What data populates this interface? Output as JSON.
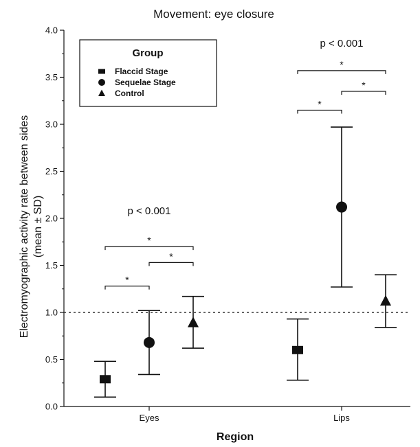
{
  "chart_data": {
    "type": "scatter",
    "title": "Movement: eye closure",
    "ylabel": "Electromyographic activity rate between sides",
    "ylabel_sub": "(mean ± SD)",
    "xlabel": "Region",
    "ylim": [
      0,
      4
    ],
    "y_ticks": [
      "0.0",
      "0.5",
      "1.0",
      "1.5",
      "2.0",
      "2.5",
      "3.0",
      "3.5",
      "4.0"
    ],
    "categories": [
      "Eyes",
      "Lips"
    ],
    "reference_line": 1.0,
    "legend": {
      "title": "Group",
      "placement": "top-left"
    },
    "series": [
      {
        "name": "Flaccid Stage",
        "marker": "square",
        "means": [
          0.29,
          0.6
        ],
        "sd_low": [
          0.1,
          0.28
        ],
        "sd_high": [
          0.48,
          0.93
        ]
      },
      {
        "name": "Sequelae Stage",
        "marker": "circle",
        "means": [
          0.68,
          2.12
        ],
        "sd_low": [
          0.34,
          1.27
        ],
        "sd_high": [
          1.02,
          2.97
        ]
      },
      {
        "name": "Control",
        "marker": "triangle",
        "means": [
          0.89,
          1.12
        ],
        "sd_low": [
          0.62,
          0.84
        ],
        "sd_high": [
          1.17,
          1.4
        ]
      }
    ],
    "annotations": [
      {
        "category": "Eyes",
        "p_value": "p < 0.001",
        "p_value_y": 2.08,
        "brackets": [
          {
            "from": "Flaccid Stage",
            "to": "Sequelae Stage",
            "y": 1.28,
            "label": "*"
          },
          {
            "from": "Sequelae Stage",
            "to": "Control",
            "y": 1.53,
            "label": "*"
          },
          {
            "from": "Flaccid Stage",
            "to": "Control",
            "y": 1.7,
            "label": "*"
          }
        ]
      },
      {
        "category": "Lips",
        "p_value": "p < 0.001",
        "p_value_y": 3.86,
        "brackets": [
          {
            "from": "Flaccid Stage",
            "to": "Sequelae Stage",
            "y": 3.15,
            "label": "*"
          },
          {
            "from": "Sequelae Stage",
            "to": "Control",
            "y": 3.35,
            "label": "*"
          },
          {
            "from": "Flaccid Stage",
            "to": "Control",
            "y": 3.57,
            "label": "*"
          }
        ]
      }
    ]
  }
}
